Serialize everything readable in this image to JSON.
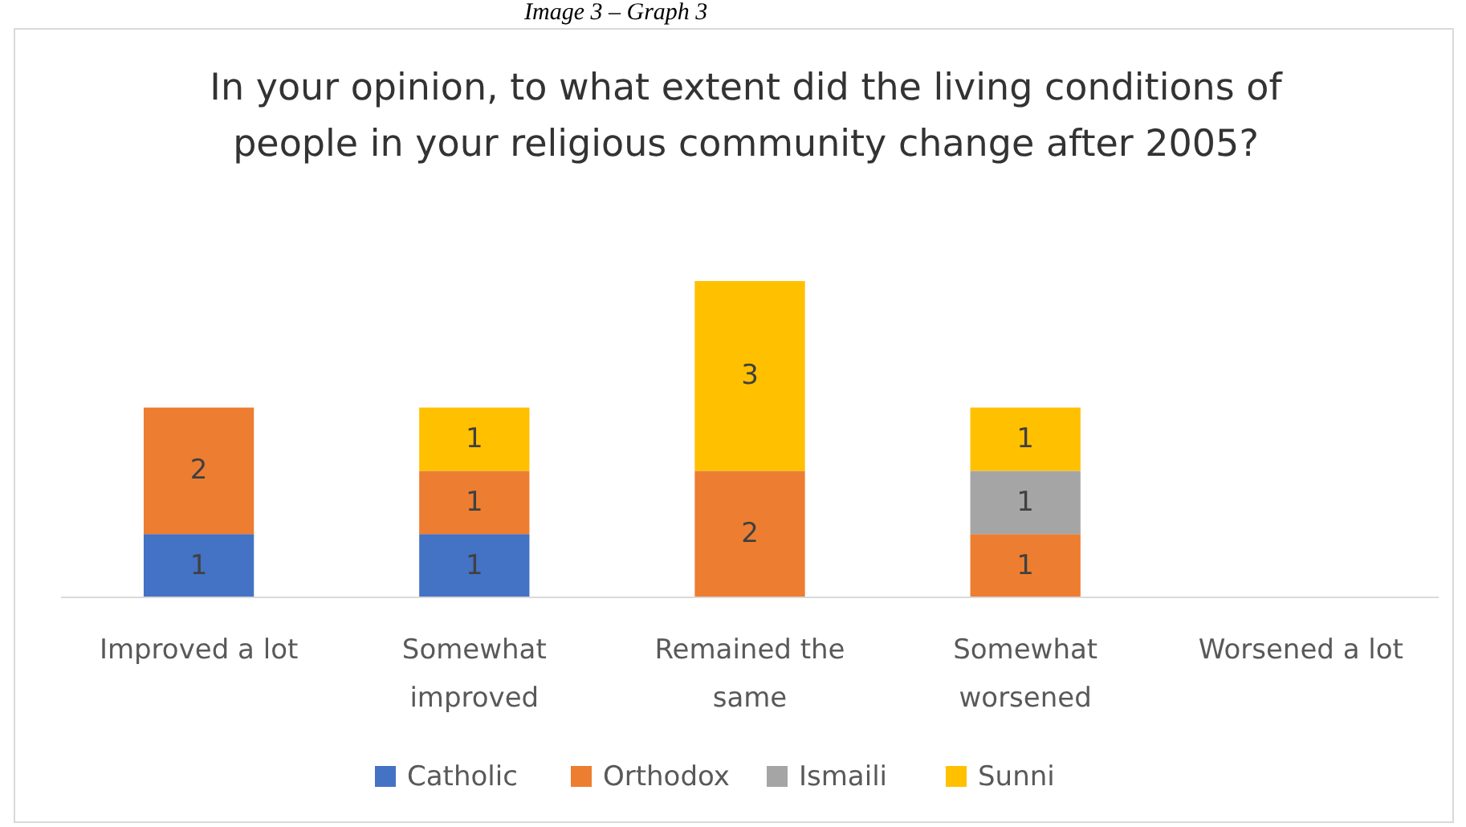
{
  "chart_data": {
    "type": "bar",
    "stacked": true,
    "data_labels": true,
    "legend": "bottom",
    "grid": false,
    "title": "In your opinion, to what extent did the living conditions of people in your religious community change after 2005?",
    "annotations": [
      "Image 3 – Graph 3"
    ],
    "categories": [
      "Improved a lot",
      "Somewhat improved",
      "Remained the same",
      "Somewhat worsened",
      "Worsened a lot"
    ],
    "series": [
      {
        "name": "Catholic",
        "color": "#4472c4",
        "values": [
          1,
          1,
          null,
          null,
          null
        ]
      },
      {
        "name": "Orthodox",
        "color": "#ed7d31",
        "values": [
          2,
          1,
          2,
          1,
          null
        ]
      },
      {
        "name": "Ismaili",
        "color": "#a5a5a5",
        "values": [
          null,
          null,
          null,
          1,
          null
        ]
      },
      {
        "name": "Sunni",
        "color": "#ffc000",
        "values": [
          null,
          1,
          3,
          1,
          null
        ]
      }
    ]
  }
}
